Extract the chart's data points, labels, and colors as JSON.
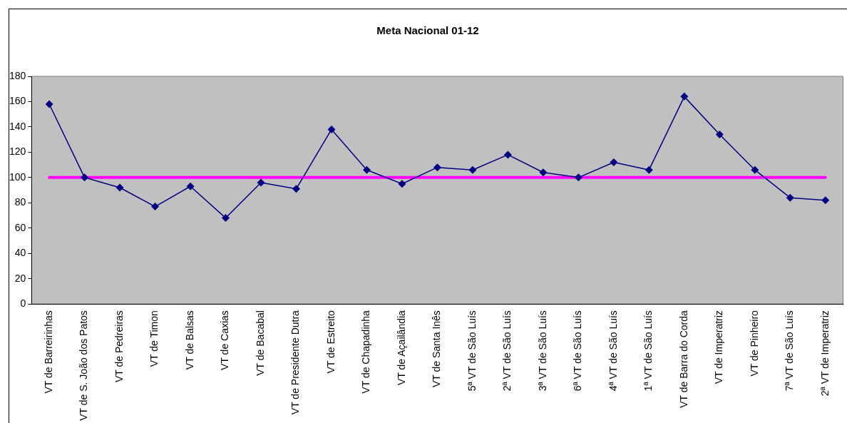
{
  "chart_data": {
    "type": "line",
    "title": "Meta Nacional 01-12",
    "categories": [
      "VT de Barreirinhas",
      "VT de S. João dos Patos",
      "VT de Pedreiras",
      "VT de Timon",
      "VT de Balsas",
      "VT de Caxias",
      "VT de Bacabal",
      "VT de Presidente Dutra",
      "VT de Estreito",
      "VT de Chapadinha",
      "VT de Açailândia",
      "VT de Santa Inês",
      "5ª VT de São Luís",
      "2ª VT de São Luís",
      "3ª VT de São Luís",
      "6ª VT de São Luís",
      "4ª VT de São Luís",
      "1ª VT de São Luís",
      "VT de Barra do Corda",
      "VT de Imperatriz",
      "VT de Pinheiro",
      "7ª VT de São Luís",
      "2ª VT de Imperatriz"
    ],
    "series": [
      {
        "color": "#000080",
        "values": [
          158,
          100,
          92,
          77,
          93,
          68,
          96,
          91,
          138,
          106,
          95,
          108,
          106,
          118,
          104,
          100,
          112,
          106,
          164,
          134,
          106,
          84,
          82
        ]
      }
    ],
    "ylim": [
      0,
      180
    ],
    "yticks": [
      0,
      20,
      40,
      60,
      80,
      100,
      120,
      140,
      160,
      180
    ],
    "ref_lines": [
      {
        "axis": "y",
        "value": 100,
        "color": "#ff00ff"
      }
    ],
    "grid": false,
    "legend": false,
    "marker": "diamond",
    "line_style": "solid"
  }
}
